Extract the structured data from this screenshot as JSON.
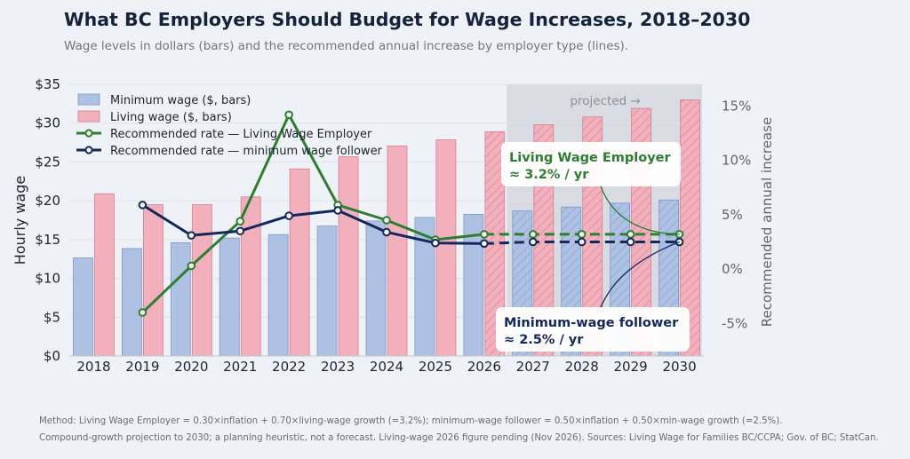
{
  "title": "What BC Employers Should Budget for Wage Increases, 2018–2030",
  "subtitle": "Wage levels in dollars (bars) and the recommended annual increase by employer type (lines).",
  "footer": {
    "line1": "Method: Living Wage Employer = 0.30×inflation + 0.70×living-wage growth (=3.2%);  minimum-wage follower = 0.50×inflation + 0.50×min-wage growth (=2.5%).",
    "line2": "Compound-growth projection to 2030; a planning heuristic, not a forecast.  Living-wage 2026 figure pending (Nov 2026).  Sources: Living Wage for Families BC/CCPA; Gov. of BC; StatCan."
  },
  "colors": {
    "minimum_bar": "#aec1e3",
    "minimum_edge": "#7f97c7",
    "living_bar": "#f2b0bd",
    "living_edge": "#d57f93",
    "living_line": "#2e7d32",
    "minimum_line": "#14285a",
    "projection_shade": "#d4d7dd",
    "grid": "#dde1e8"
  },
  "chart_data": {
    "type": "bar",
    "categories": [
      "2018",
      "2019",
      "2020",
      "2021",
      "2022",
      "2023",
      "2024",
      "2025",
      "2026",
      "2027",
      "2028",
      "2029",
      "2030"
    ],
    "ylabel": "Hourly wage",
    "y2label": "Recommended annual increase",
    "ylim": [
      0,
      35
    ],
    "yticks": [
      "$0",
      "$5",
      "$10",
      "$15",
      "$20",
      "$25",
      "$30",
      "$35"
    ],
    "y2lim": [
      -8,
      17
    ],
    "y2ticks": [
      "-5%",
      "0%",
      "5%",
      "10%",
      "15%"
    ],
    "projected_label": "projected →",
    "projected_from": "2027",
    "hatched_from_living": "2026",
    "hatched_from_minimum": "2027",
    "legend_position": "top-left",
    "series": [
      {
        "name": "Minimum wage ($, bars)",
        "kind": "bar",
        "values": [
          12.65,
          13.85,
          14.6,
          15.2,
          15.65,
          16.75,
          17.4,
          17.85,
          18.25,
          18.7,
          19.2,
          19.7,
          20.1
        ]
      },
      {
        "name": "Living wage ($, bars)",
        "kind": "bar",
        "values": [
          20.9,
          19.5,
          19.5,
          20.5,
          24.1,
          25.7,
          27.05,
          27.85,
          28.9,
          29.8,
          30.8,
          31.9,
          33.0
        ]
      },
      {
        "name": "Recommended rate — Living Wage Employer",
        "kind": "line",
        "values": [
          null,
          -4.0,
          0.3,
          4.4,
          14.2,
          5.9,
          4.5,
          2.7,
          3.2,
          3.2,
          3.2,
          3.2,
          3.2
        ],
        "projected_from_index": 8
      },
      {
        "name": "Recommended rate — minimum wage follower",
        "kind": "line",
        "values": [
          null,
          5.9,
          3.1,
          3.5,
          4.9,
          5.4,
          3.4,
          2.4,
          2.35,
          2.5,
          2.5,
          2.5,
          2.5
        ],
        "projected_from_index": 8
      }
    ],
    "annotations": [
      {
        "line1": "Living Wage Employer",
        "line2": "≈ 3.2% / yr",
        "color": "#2e7d32"
      },
      {
        "line1": "Minimum-wage follower",
        "line2": "≈ 2.5% / yr",
        "color": "#14285a"
      }
    ]
  }
}
